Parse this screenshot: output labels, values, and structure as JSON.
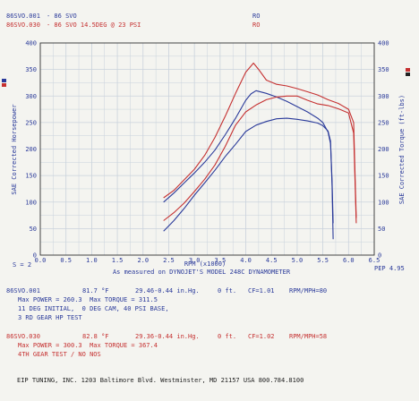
{
  "colors": {
    "blue": "#2a3a9a",
    "red": "#c53030",
    "grid": "#c9d2dc",
    "axis": "#333333"
  },
  "legend": {
    "run1": {
      "file": "86SVO.001",
      "desc": "- 86 SVO",
      "tag": "RO"
    },
    "run2": {
      "file": "86SVO.030",
      "desc": "- 86 SVO 14.5DEG @ 23 PSI",
      "tag": "RO"
    }
  },
  "chart": {
    "left_axis_label": "SAE Corrected Horsepower",
    "right_axis_label": "SAE Corrected Torque (ft-lbs)",
    "x_axis_label": "RPM (x1000)",
    "caption": "As measured on DYNOJET'S MODEL 248C DYNAMOMETER",
    "smoothing": "S = 2",
    "pep": "PEP 4.95"
  },
  "runs": [
    {
      "file": "86SVO.001",
      "temp": "81.7 °F",
      "baro": "29.46-0.44 in.Hg.",
      "alt": "0 ft.",
      "cf": "CF=1.01",
      "mode": "RPM/MPH=80",
      "max_line": "Max POWER = 260.3  Max TORQUE = 311.5",
      "note1": "11 DEG INITIAL,  0 DEG CAM, 40 PSI BASE,",
      "note2": "3 RD GEAR HP TEST"
    },
    {
      "file": "86SVO.030",
      "temp": "82.8 °F",
      "baro": "29.36-0.44 in.Hg.",
      "alt": "0 ft.",
      "cf": "CF=1.02",
      "mode": "RPM/MPH=58",
      "max_line": "Max POWER = 300.3  Max TORQUE = 367.4",
      "note1": "4TH GEAR TEST / NO NOS"
    }
  ],
  "footer": "EIP TUNING, INC. 1203 Baltimore Blvd. Westminster, MD 21157 USA 800.784.8100",
  "chart_data": {
    "type": "line",
    "xlabel": "RPM (x1000)",
    "ylabel": "SAE Corrected Horsepower",
    "y2label": "SAE Corrected Torque (ft-lbs)",
    "xlim": [
      0,
      6.5
    ],
    "ylim": [
      0,
      400
    ],
    "y2lim": [
      0,
      400
    ],
    "x_ticks": [
      "0.0",
      "0.5",
      "1.0",
      "1.5",
      "2.0",
      "2.5",
      "3.0",
      "3.5",
      "4.0",
      "4.5",
      "5.0",
      "5.5",
      "6.0",
      "6.5"
    ],
    "y_ticks": [
      "0",
      "50",
      "100",
      "150",
      "200",
      "250",
      "300",
      "350",
      "400"
    ],
    "grid": true,
    "series": [
      {
        "name": "86SVO.001",
        "quantity": "horsepower",
        "color": "#2a3a9a",
        "points": [
          [
            2.4,
            45
          ],
          [
            2.6,
            65
          ],
          [
            2.8,
            88
          ],
          [
            3.0,
            113
          ],
          [
            3.2,
            136
          ],
          [
            3.4,
            160
          ],
          [
            3.6,
            186
          ],
          [
            3.8,
            209
          ],
          [
            4.0,
            233
          ],
          [
            4.2,
            245
          ],
          [
            4.4,
            252
          ],
          [
            4.6,
            257
          ],
          [
            4.8,
            258
          ],
          [
            5.0,
            256
          ],
          [
            5.2,
            253
          ],
          [
            5.4,
            249
          ],
          [
            5.5,
            244
          ],
          [
            5.6,
            234
          ],
          [
            5.65,
            215
          ],
          [
            5.68,
            130
          ],
          [
            5.7,
            30
          ]
        ]
      },
      {
        "name": "86SVO.001",
        "quantity": "torque",
        "color": "#2a3a9a",
        "points": [
          [
            2.4,
            100
          ],
          [
            2.6,
            117
          ],
          [
            2.8,
            136
          ],
          [
            3.0,
            155
          ],
          [
            3.2,
            175
          ],
          [
            3.4,
            198
          ],
          [
            3.6,
            227
          ],
          [
            3.8,
            258
          ],
          [
            4.0,
            292
          ],
          [
            4.1,
            304
          ],
          [
            4.2,
            310
          ],
          [
            4.4,
            305
          ],
          [
            4.6,
            298
          ],
          [
            4.8,
            290
          ],
          [
            5.0,
            280
          ],
          [
            5.2,
            270
          ],
          [
            5.4,
            258
          ],
          [
            5.5,
            250
          ],
          [
            5.6,
            232
          ],
          [
            5.65,
            210
          ],
          [
            5.68,
            140
          ],
          [
            5.7,
            60
          ]
        ]
      },
      {
        "name": "86SVO.030",
        "quantity": "horsepower",
        "color": "#c53030",
        "points": [
          [
            2.4,
            65
          ],
          [
            2.6,
            80
          ],
          [
            2.8,
            98
          ],
          [
            3.0,
            120
          ],
          [
            3.2,
            143
          ],
          [
            3.4,
            170
          ],
          [
            3.6,
            205
          ],
          [
            3.8,
            245
          ],
          [
            4.0,
            270
          ],
          [
            4.2,
            283
          ],
          [
            4.4,
            293
          ],
          [
            4.6,
            298
          ],
          [
            4.8,
            300
          ],
          [
            5.0,
            300
          ],
          [
            5.2,
            292
          ],
          [
            5.4,
            285
          ],
          [
            5.6,
            282
          ],
          [
            5.8,
            276
          ],
          [
            6.0,
            268
          ],
          [
            6.1,
            230
          ],
          [
            6.15,
            60
          ]
        ]
      },
      {
        "name": "86SVO.030",
        "quantity": "torque",
        "color": "#c53030",
        "points": [
          [
            2.4,
            108
          ],
          [
            2.6,
            122
          ],
          [
            2.8,
            142
          ],
          [
            3.0,
            162
          ],
          [
            3.2,
            188
          ],
          [
            3.4,
            222
          ],
          [
            3.6,
            262
          ],
          [
            3.8,
            305
          ],
          [
            4.0,
            345
          ],
          [
            4.15,
            362
          ],
          [
            4.25,
            350
          ],
          [
            4.4,
            330
          ],
          [
            4.6,
            322
          ],
          [
            4.8,
            319
          ],
          [
            5.0,
            314
          ],
          [
            5.2,
            308
          ],
          [
            5.4,
            302
          ],
          [
            5.6,
            293
          ],
          [
            5.8,
            286
          ],
          [
            6.0,
            275
          ],
          [
            6.1,
            250
          ],
          [
            6.15,
            70
          ]
        ]
      }
    ]
  }
}
